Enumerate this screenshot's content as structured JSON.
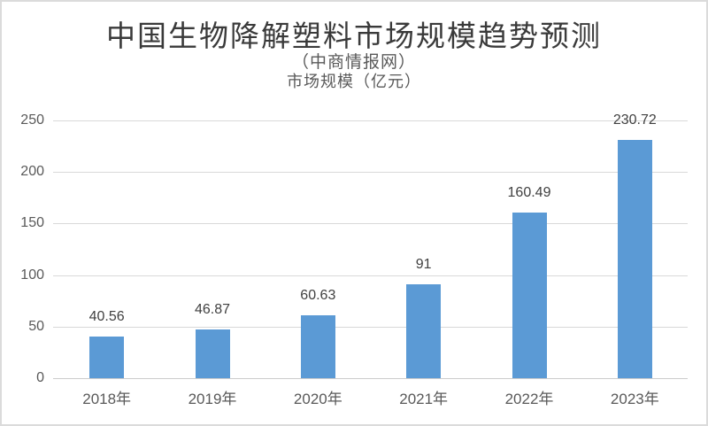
{
  "header": {
    "title": "中国生物降解塑料市场规模趋势预测",
    "source": "（中商情报网）",
    "axis_title": "市场规模（亿元）"
  },
  "colors": {
    "bar": "#5B9AD5",
    "grid": "#D9D9D9",
    "baseline": "#CDCDCD",
    "title_text": "#3A3A3A",
    "subtitle_text": "#595959",
    "tick_text": "#595959",
    "data_label_text": "#404040",
    "frame_border": "#DBDBDB"
  },
  "chart_data": {
    "type": "bar",
    "title": "中国生物降解塑料市场规模趋势预测",
    "subtitle": "（中商情报网）",
    "ylabel": "市场规模（亿元）",
    "categories": [
      "2018年",
      "2019年",
      "2020年",
      "2021年",
      "2022年",
      "2023年"
    ],
    "values": [
      40.56,
      46.87,
      60.63,
      91,
      160.49,
      230.72
    ],
    "data_labels": [
      "40.56",
      "46.87",
      "60.63",
      "91",
      "160.49",
      "230.72"
    ],
    "ylim": [
      0,
      250
    ],
    "yticks": [
      0,
      50,
      100,
      150,
      200,
      250
    ],
    "grid": true,
    "legend_position": "none",
    "xlabel": ""
  }
}
